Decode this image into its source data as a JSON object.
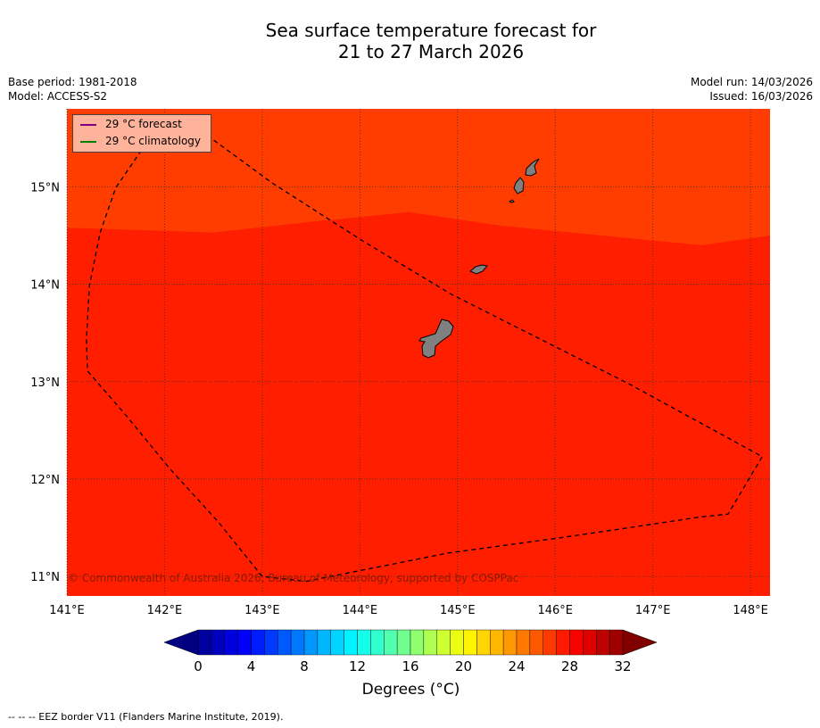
{
  "title_line1": "Sea surface temperature forecast for",
  "title_line2": "21 to 27 March 2026",
  "meta": {
    "base_period": "Base period: 1981-2018",
    "model": "Model: ACCESS-S2",
    "model_run": "Model run: 14/03/2026",
    "issued": "Issued: 16/03/2026"
  },
  "legend": [
    {
      "label": "29 °C  forecast",
      "color": "#800080"
    },
    {
      "label": "29 °C  climatology",
      "color": "#008000"
    }
  ],
  "copyright": "© Commonwealth of Australia 2026, Bureau of Meteorology, supported by COSPPac",
  "footnote": "--  --  -- EEZ border V11 (Flanders Marine Institute, 2019).",
  "colorbar_label": "Degrees (°C)",
  "chart_data": {
    "type": "heatmap",
    "title": "Sea surface temperature forecast for 21 to 27 March 2026",
    "xlim": [
      141,
      148.2
    ],
    "ylim": [
      10.8,
      15.8
    ],
    "x_ticks": [
      141,
      142,
      143,
      144,
      145,
      146,
      147,
      148
    ],
    "x_tick_labels": [
      "141°E",
      "142°E",
      "143°E",
      "144°E",
      "145°E",
      "146°E",
      "147°E",
      "148°E"
    ],
    "y_ticks": [
      11,
      12,
      13,
      14,
      15
    ],
    "y_tick_labels": [
      "11°N",
      "12°N",
      "13°N",
      "14°N",
      "15°N"
    ],
    "grid": true,
    "regions": [
      {
        "name": "north",
        "value_range": "28-29 °C",
        "color": "#ff3d00"
      },
      {
        "name": "south",
        "value_range": "29-30 °C",
        "color": "#ff1e00"
      }
    ],
    "region_boundary_lonlat": [
      [
        141,
        14.58
      ],
      [
        142.5,
        14.53
      ],
      [
        143.5,
        14.64
      ],
      [
        144.5,
        14.74
      ],
      [
        145.45,
        14.6
      ],
      [
        147.5,
        14.4
      ],
      [
        148.2,
        14.5
      ]
    ],
    "eez_border_lonlat": [
      [
        141.97,
        15.63
      ],
      [
        141.78,
        15.4
      ],
      [
        141.5,
        14.99
      ],
      [
        141.34,
        14.53
      ],
      [
        141.23,
        13.98
      ],
      [
        141.2,
        13.43
      ],
      [
        141.21,
        13.11
      ],
      [
        141.6,
        12.66
      ],
      [
        142.05,
        12.11
      ],
      [
        142.55,
        11.56
      ],
      [
        143.0,
        11.0
      ],
      [
        143.45,
        10.95
      ],
      [
        144.0,
        11.06
      ],
      [
        144.9,
        11.24
      ],
      [
        146.0,
        11.39
      ],
      [
        146.75,
        11.5
      ],
      [
        147.48,
        11.61
      ],
      [
        147.77,
        11.64
      ],
      [
        148.12,
        12.23
      ],
      [
        146.75,
        12.98
      ],
      [
        145.84,
        13.44
      ],
      [
        144.93,
        13.9
      ],
      [
        144.02,
        14.45
      ],
      [
        143.1,
        15.04
      ],
      [
        142.42,
        15.54
      ],
      [
        141.97,
        15.63
      ]
    ],
    "colorbar": {
      "min": 0,
      "max": 32,
      "step": 1,
      "ticks": [
        0,
        4,
        8,
        12,
        16,
        20,
        24,
        28,
        32
      ],
      "extend": "both",
      "label": "Degrees (°C)"
    }
  }
}
